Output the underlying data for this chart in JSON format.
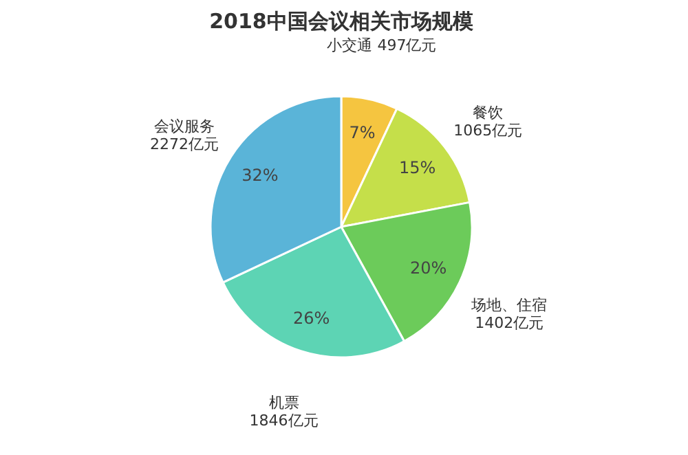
{
  "chart_data": {
    "type": "pie",
    "title": "2018中国会议相关市场规模",
    "categories": [
      "小交通  497亿元",
      "餐饮\n1065亿元",
      "场地、住宿\n1402亿元",
      "机票\n1846亿元",
      "会议服务\n2272亿元"
    ],
    "values": [
      7,
      15,
      20,
      26,
      32
    ],
    "value_labels": [
      "7%",
      "15%",
      "20%",
      "26%",
      "32%"
    ],
    "colors": [
      "#f5c540",
      "#c5df4a",
      "#6ccb5a",
      "#5dd4b4",
      "#5ab4d8"
    ]
  }
}
